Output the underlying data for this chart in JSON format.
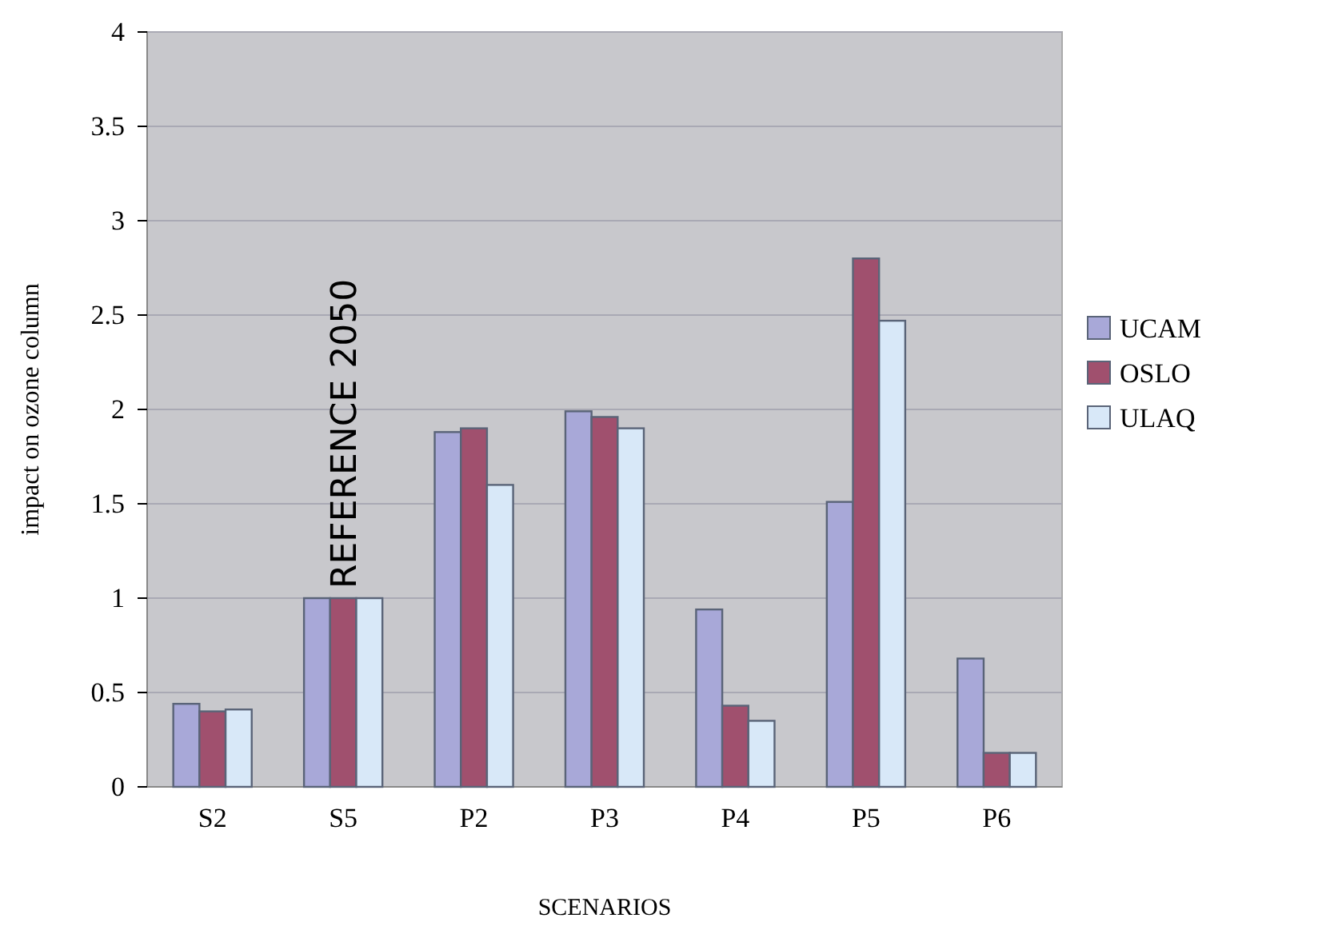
{
  "chart_data": {
    "type": "bar",
    "xlabel": "SCENARIOS",
    "ylabel": "impact on ozone column",
    "categories": [
      "S2",
      "S5",
      "P2",
      "P3",
      "P4",
      "P5",
      "P6"
    ],
    "series": [
      {
        "name": "UCAM",
        "color": "#a8a8d8",
        "values": [
          0.44,
          1,
          1.88,
          1.99,
          0.94,
          1.51,
          0.68
        ]
      },
      {
        "name": "OSLO",
        "color": "#a0506e",
        "values": [
          0.4,
          1,
          1.9,
          1.96,
          0.43,
          2.8,
          0.18
        ]
      },
      {
        "name": "ULAQ",
        "color": "#d8e8f8",
        "values": [
          0.41,
          1,
          1.6,
          1.9,
          0.35,
          2.47,
          0.18
        ]
      }
    ],
    "ylim": [
      0,
      4
    ],
    "yticks": [
      0,
      0.5,
      1,
      1.5,
      2,
      2.5,
      3,
      3.5,
      4
    ],
    "grid": "y",
    "legend": "right",
    "annotations": [
      "REFERENCE 2050"
    ]
  }
}
